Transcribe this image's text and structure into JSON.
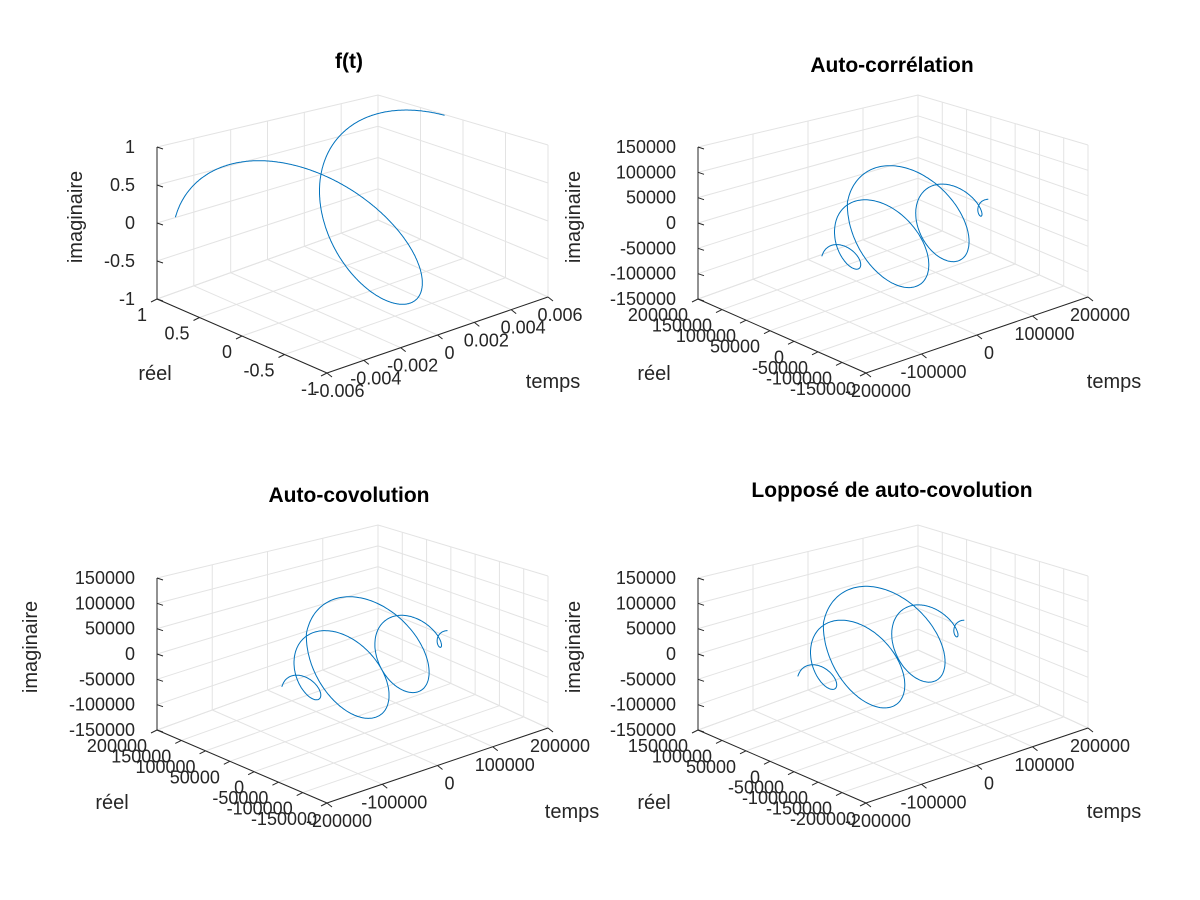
{
  "chart_data": [
    {
      "type": "line3d",
      "title": "f(t)",
      "xlabel": "temps",
      "ylabel": "réel",
      "zlabel": "imaginaire",
      "xticks": [
        "-0.006",
        "-0.004",
        "-0.002",
        "0",
        "0.002",
        "0.004",
        "0.006"
      ],
      "yticks": [
        "1",
        "0.5",
        "0",
        "-0.5",
        "-1"
      ],
      "zticks": [
        "1",
        "0.5",
        "0",
        "-0.5",
        "-1"
      ],
      "xlim": [
        -0.006,
        0.006
      ],
      "ylim": [
        -1,
        1
      ],
      "zlim": [
        -1,
        1
      ],
      "grid": true,
      "series": [
        {
          "color": "#0072bd",
          "t_range": [
            -0.005,
            0.005
          ],
          "turns": 1.25,
          "amplitude": 1
        }
      ]
    },
    {
      "type": "line3d",
      "title": "Auto-corrélation",
      "xlabel": "temps",
      "ylabel": "réel",
      "zlabel": "imaginaire",
      "xticks": [
        "-200000",
        "-100000",
        "0",
        "100000",
        "200000"
      ],
      "yticks": [
        "200000",
        "150000",
        "100000",
        "50000",
        "0",
        "-50000",
        "-100000",
        "-150000"
      ],
      "zticks": [
        "150000",
        "100000",
        "50000",
        "0",
        "-50000",
        "-100000",
        "-150000"
      ],
      "xlim": [
        -200000,
        200000
      ],
      "ylim": [
        -150000,
        200000
      ],
      "zlim": [
        -150000,
        150000
      ],
      "grid": true,
      "series": [
        {
          "color": "#0072bd",
          "t_range": [
            -150000,
            150000
          ],
          "turns": 4,
          "max_amplitude": 120000,
          "envelope": "triangular"
        }
      ]
    },
    {
      "type": "line3d",
      "title": "Auto-covolution",
      "xlabel": "temps",
      "ylabel": "réel",
      "zlabel": "imaginaire",
      "xticks": [
        "-200000",
        "-100000",
        "0",
        "100000",
        "200000"
      ],
      "yticks": [
        "200000",
        "150000",
        "100000",
        "50000",
        "0",
        "-50000",
        "-100000",
        "-150000"
      ],
      "zticks": [
        "150000",
        "100000",
        "50000",
        "0",
        "-50000",
        "-100000",
        "-150000"
      ],
      "xlim": [
        -200000,
        200000
      ],
      "ylim": [
        -150000,
        200000
      ],
      "zlim": [
        -150000,
        150000
      ],
      "grid": true,
      "series": [
        {
          "color": "#0072bd",
          "t_range": [
            -150000,
            150000
          ],
          "turns": 4,
          "max_amplitude": 120000,
          "envelope": "triangular"
        }
      ]
    },
    {
      "type": "line3d",
      "title": "Lopposé de auto-covolution",
      "xlabel": "temps",
      "ylabel": "réel",
      "zlabel": "imaginaire",
      "xticks": [
        "-200000",
        "-100000",
        "0",
        "100000",
        "200000"
      ],
      "yticks": [
        "150000",
        "100000",
        "50000",
        "0",
        "-50000",
        "-100000",
        "-150000",
        "-200000"
      ],
      "zticks": [
        "150000",
        "100000",
        "50000",
        "0",
        "-50000",
        "-100000",
        "-150000"
      ],
      "xlim": [
        -200000,
        200000
      ],
      "ylim": [
        -200000,
        150000
      ],
      "zlim": [
        -150000,
        150000
      ],
      "grid": true,
      "series": [
        {
          "color": "#0072bd",
          "t_range": [
            -150000,
            150000
          ],
          "turns": 4,
          "max_amplitude": 120000,
          "envelope": "triangular"
        }
      ]
    }
  ]
}
